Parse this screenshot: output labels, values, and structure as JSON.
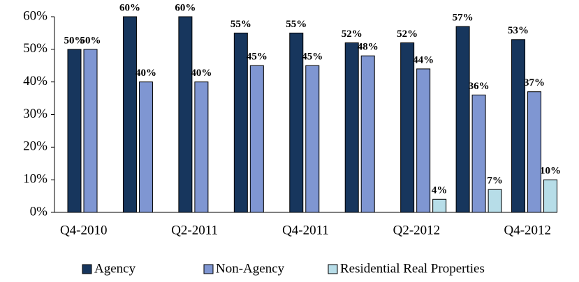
{
  "chart_data": {
    "type": "bar",
    "categories": [
      "Q4-2010",
      null,
      "Q2-2011",
      null,
      "Q4-2011",
      null,
      "Q2-2012",
      null,
      "Q4-2012"
    ],
    "series": [
      {
        "name": "Agency",
        "color": "#17365d",
        "values": [
          50,
          60,
          60,
          55,
          55,
          52,
          52,
          57,
          53
        ],
        "value_labels": [
          "50%",
          "60%",
          "60%",
          "55%",
          "55%",
          "52%",
          "52%",
          "57%",
          "53%"
        ]
      },
      {
        "name": "Non-Agency",
        "color": "#7f96d2",
        "values": [
          50,
          40,
          40,
          45,
          45,
          48,
          44,
          36,
          37
        ],
        "value_labels": [
          "50%",
          "40%",
          "40%",
          "45%",
          "45%",
          "48%",
          "44%",
          "36%",
          "37%"
        ]
      },
      {
        "name": "Residential Real Properties",
        "color": "#b7dde8",
        "values": [
          null,
          null,
          null,
          null,
          null,
          null,
          4,
          7,
          10
        ],
        "value_labels": [
          null,
          null,
          null,
          null,
          null,
          null,
          "4%",
          "7%",
          "10%"
        ]
      }
    ],
    "ylim": [
      0,
      60
    ],
    "yticks": [
      {
        "value": 0,
        "label": "0%"
      },
      {
        "value": 10,
        "label": "10%"
      },
      {
        "value": 20,
        "label": "20%"
      },
      {
        "value": 30,
        "label": "30%"
      },
      {
        "value": 40,
        "label": "40%"
      },
      {
        "value": 50,
        "label": "50%"
      },
      {
        "value": 60,
        "label": "60%"
      }
    ],
    "legend": "bottom"
  }
}
